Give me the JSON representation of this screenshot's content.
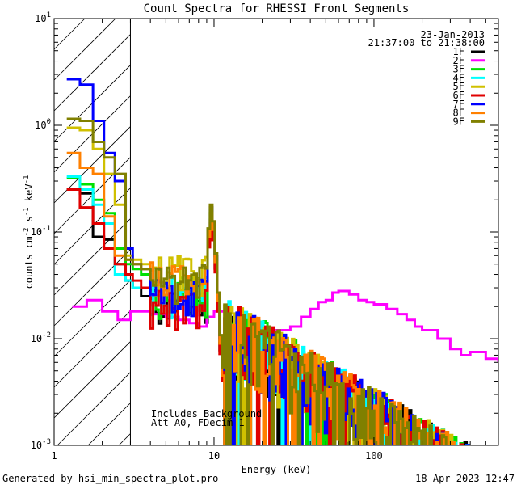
{
  "chart_data": {
    "type": "line",
    "title": "Count Spectra for RHESSI Front Segments",
    "xlabel": "Energy (keV)",
    "ylabel_parts": [
      "counts cm",
      "-2",
      " s",
      "-1",
      " keV",
      "-1"
    ],
    "xscale": "log",
    "yscale": "log",
    "xlim": [
      1,
      600
    ],
    "ylim": [
      0.001,
      10
    ],
    "x_ticks": [
      {
        "v": 1,
        "label": "1"
      },
      {
        "v": 10,
        "label": "10"
      },
      {
        "v": 100,
        "label": "100"
      }
    ],
    "y_ticks": [
      {
        "v": 0.001,
        "base": "10",
        "exp": "-3"
      },
      {
        "v": 0.01,
        "base": "10",
        "exp": "-2"
      },
      {
        "v": 0.1,
        "base": "10",
        "exp": "-1"
      },
      {
        "v": 1,
        "base": "10",
        "exp": "0"
      },
      {
        "v": 10,
        "base": "10",
        "exp": "1"
      }
    ],
    "shaded_region": {
      "x_from": 1,
      "x_to": 3,
      "pattern": "diagonal-hatch"
    },
    "date": "23-Jan-2013",
    "time_range": "21:37:00 to 21:38:00",
    "annotations": [
      "Includes Background",
      "Att A0, FDecim 1"
    ],
    "series": [
      {
        "name": "1F",
        "color": "#000000",
        "low": [
          0.25,
          0.23,
          0.09,
          0.085,
          0.05,
          0.035,
          0.03,
          0.025
        ],
        "mid": 0.02,
        "peak": 0.13
      },
      {
        "name": "2F",
        "color": "#ff00ff",
        "pink": true,
        "points": [
          [
            1.3,
            0.02
          ],
          [
            1.6,
            0.023
          ],
          [
            2.0,
            0.018
          ],
          [
            2.5,
            0.015
          ],
          [
            3,
            0.018
          ],
          [
            4,
            0.017
          ],
          [
            5,
            0.016
          ],
          [
            6,
            0.015
          ],
          [
            7,
            0.014
          ],
          [
            8,
            0.013
          ],
          [
            9,
            0.016
          ],
          [
            10,
            0.018
          ],
          [
            12,
            0.012
          ],
          [
            15,
            0.013
          ],
          [
            20,
            0.012
          ],
          [
            25,
            0.012
          ],
          [
            30,
            0.013
          ],
          [
            35,
            0.016
          ],
          [
            40,
            0.019
          ],
          [
            45,
            0.022
          ],
          [
            50,
            0.023
          ],
          [
            55,
            0.027
          ],
          [
            60,
            0.028
          ],
          [
            70,
            0.026
          ],
          [
            80,
            0.023
          ],
          [
            90,
            0.022
          ],
          [
            100,
            0.021
          ],
          [
            120,
            0.019
          ],
          [
            140,
            0.017
          ],
          [
            160,
            0.015
          ],
          [
            180,
            0.013
          ],
          [
            200,
            0.012
          ],
          [
            250,
            0.01
          ],
          [
            300,
            0.008
          ],
          [
            350,
            0.007
          ],
          [
            400,
            0.0075
          ],
          [
            500,
            0.0065
          ],
          [
            600,
            0.006
          ]
        ]
      },
      {
        "name": "3F",
        "color": "#00e000",
        "low": [
          0.32,
          0.28,
          0.2,
          0.15,
          0.07,
          0.05,
          0.045,
          0.04
        ],
        "mid": 0.025,
        "peak": 0.15
      },
      {
        "name": "4F",
        "color": "#00ffff",
        "low": [
          0.33,
          0.25,
          0.18,
          0.12,
          0.04,
          0.035,
          0.03,
          0.03
        ],
        "mid": 0.025,
        "peak": 0.16
      },
      {
        "name": "5F",
        "color": "#d0c000",
        "low": [
          0.95,
          0.9,
          0.6,
          0.35,
          0.18,
          0.06,
          0.055,
          0.05
        ],
        "mid": 0.04,
        "peak": 0.17
      },
      {
        "name": "6F",
        "color": "#e00000",
        "low": [
          0.25,
          0.17,
          0.12,
          0.07,
          0.05,
          0.04,
          0.035,
          0.03
        ],
        "mid": 0.02,
        "peak": 0.12
      },
      {
        "name": "7F",
        "color": "#0000ff",
        "low": [
          2.7,
          2.4,
          1.1,
          0.55,
          0.3,
          0.07,
          0.05,
          0.045
        ],
        "mid": 0.025,
        "peak": 0.17
      },
      {
        "name": "8F",
        "color": "#ff8000",
        "low": [
          0.55,
          0.4,
          0.35,
          0.14,
          0.06,
          0.055,
          0.05,
          0.045
        ],
        "mid": 0.035,
        "peak": 0.15
      },
      {
        "name": "9F",
        "color": "#808000",
        "low": [
          1.15,
          1.1,
          0.7,
          0.5,
          0.35,
          0.055,
          0.05,
          0.045
        ],
        "mid": 0.035,
        "peak": 0.18
      }
    ]
  },
  "footer": {
    "left": "Generated by hsi_min_spectra_plot.pro",
    "right": "18-Apr-2023 12:47"
  }
}
